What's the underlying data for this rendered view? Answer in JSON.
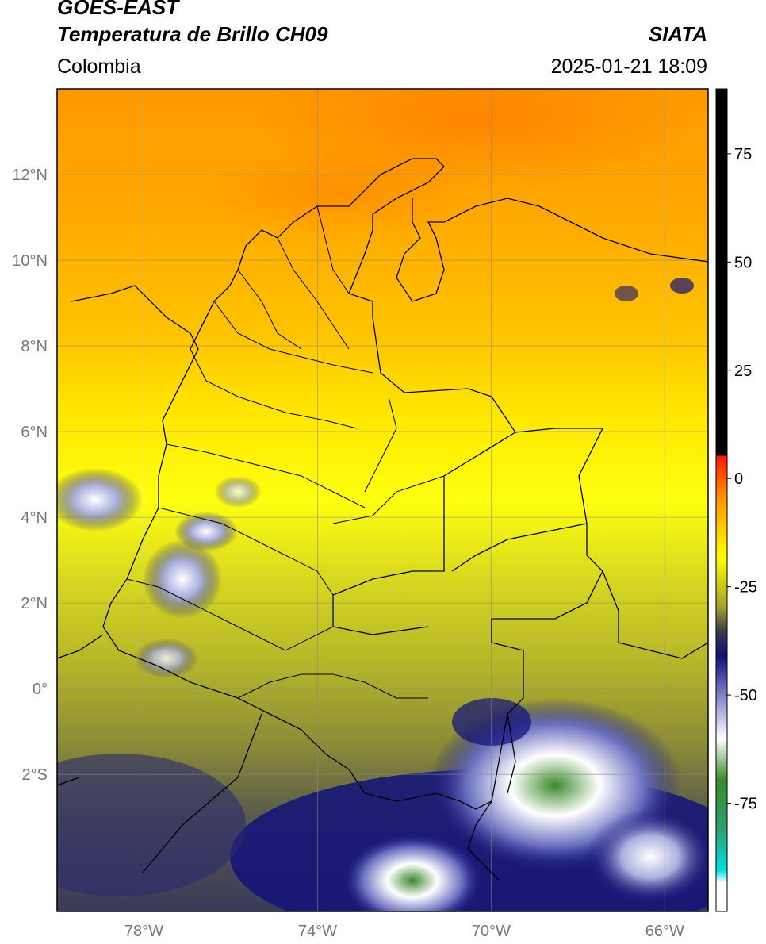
{
  "header": {
    "satellite": "GOES-EAST",
    "product": "Temperatura de Brillo CH09",
    "region": "Colombia",
    "agency": "SIATA",
    "timestamp": "2025-01-21 18:09"
  },
  "map": {
    "lon_ticks": [
      {
        "value": -78,
        "label": "78°W"
      },
      {
        "value": -74,
        "label": "74°W"
      },
      {
        "value": -70,
        "label": "70°W"
      },
      {
        "value": -66,
        "label": "66°W"
      }
    ],
    "lat_ticks": [
      {
        "value": 12,
        "label": "12°N"
      },
      {
        "value": 10,
        "label": "10°N"
      },
      {
        "value": 8,
        "label": "8°N"
      },
      {
        "value": 6,
        "label": "6°N"
      },
      {
        "value": 4,
        "label": "4°N"
      },
      {
        "value": 2,
        "label": "2°N"
      },
      {
        "value": 0,
        "label": "0°"
      },
      {
        "value": -2,
        "label": "2°S"
      }
    ],
    "extent": {
      "lon": [
        -80,
        -65
      ],
      "lat": [
        -5.2,
        14
      ]
    }
  },
  "colorbar": {
    "range": [
      -100,
      90
    ],
    "ticks": [
      {
        "value": 75,
        "label": "75"
      },
      {
        "value": 50,
        "label": "50"
      },
      {
        "value": 25,
        "label": "25"
      },
      {
        "value": 0,
        "label": "0"
      },
      {
        "value": -25,
        "label": "-25"
      },
      {
        "value": -50,
        "label": "-50"
      },
      {
        "value": -75,
        "label": "-75"
      }
    ]
  },
  "colors": {
    "warm": "#ff8c00",
    "mid": "#ffff00",
    "cool": "#9a9a2a",
    "cold": "#1a1a80",
    "coldest": "#ffffff"
  }
}
